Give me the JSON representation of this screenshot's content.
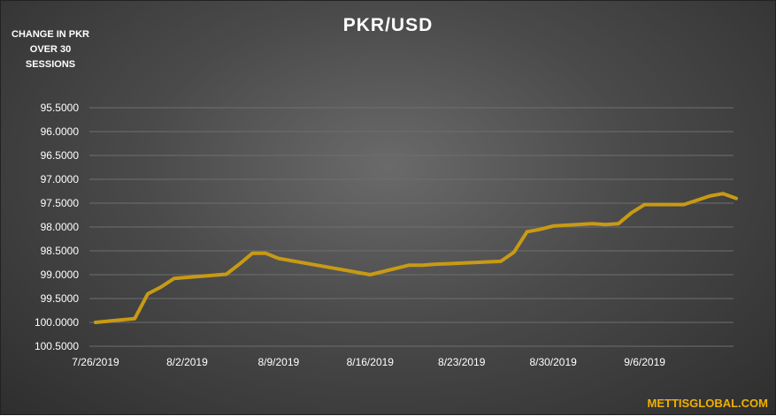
{
  "title": "PKR/USD",
  "y_title": "CHANGE IN PKR OVER 30 SESSIONS",
  "brand": "METTISGLOBAL.COM",
  "colors": {
    "line": "#c89a14",
    "grid": "#6e6e6e",
    "text": "#ffffff",
    "brand": "#f0b000"
  },
  "chart_data": {
    "type": "line",
    "title": "PKR/USD",
    "ylabel": "CHANGE IN PKR OVER 30 SESSIONS",
    "y_inverted": true,
    "ylim": [
      95.5,
      100.5
    ],
    "y_ticks": [
      "95.5000",
      "96.0000",
      "96.5000",
      "97.0000",
      "97.5000",
      "98.0000",
      "98.5000",
      "99.0000",
      "99.5000",
      "100.0000",
      "100.5000"
    ],
    "x_ticks": [
      "7/26/2019",
      "8/2/2019",
      "8/9/2019",
      "8/16/2019",
      "8/23/2019",
      "8/30/2019",
      "9/6/2019"
    ],
    "grid": true,
    "legend": "none",
    "series": [
      {
        "x": [
          "7/26/2019",
          "7/29/2019",
          "7/30/2019",
          "7/31/2019",
          "8/1/2019",
          "8/5/2019",
          "8/6/2019",
          "8/7/2019",
          "8/8/2019",
          "8/9/2019",
          "8/15/2019",
          "8/16/2019",
          "8/19/2019",
          "8/20/2019",
          "8/21/2019",
          "8/22/2019",
          "8/26/2019",
          "8/27/2019",
          "8/28/2019",
          "8/29/2019",
          "8/30/2019",
          "9/2/2019",
          "9/3/2019",
          "9/4/2019",
          "9/5/2019",
          "9/6/2019",
          "9/9/2019",
          "9/11/2019",
          "9/12/2019",
          "9/13/2019"
        ],
        "y": [
          100.0,
          99.92,
          99.4,
          99.26,
          99.08,
          98.99,
          98.78,
          98.55,
          98.55,
          98.66,
          98.95,
          99.0,
          98.8,
          98.8,
          98.78,
          98.77,
          98.72,
          98.53,
          98.1,
          98.05,
          97.98,
          97.93,
          97.95,
          97.93,
          97.7,
          97.53,
          97.53,
          97.35,
          97.3,
          97.4
        ]
      }
    ]
  }
}
